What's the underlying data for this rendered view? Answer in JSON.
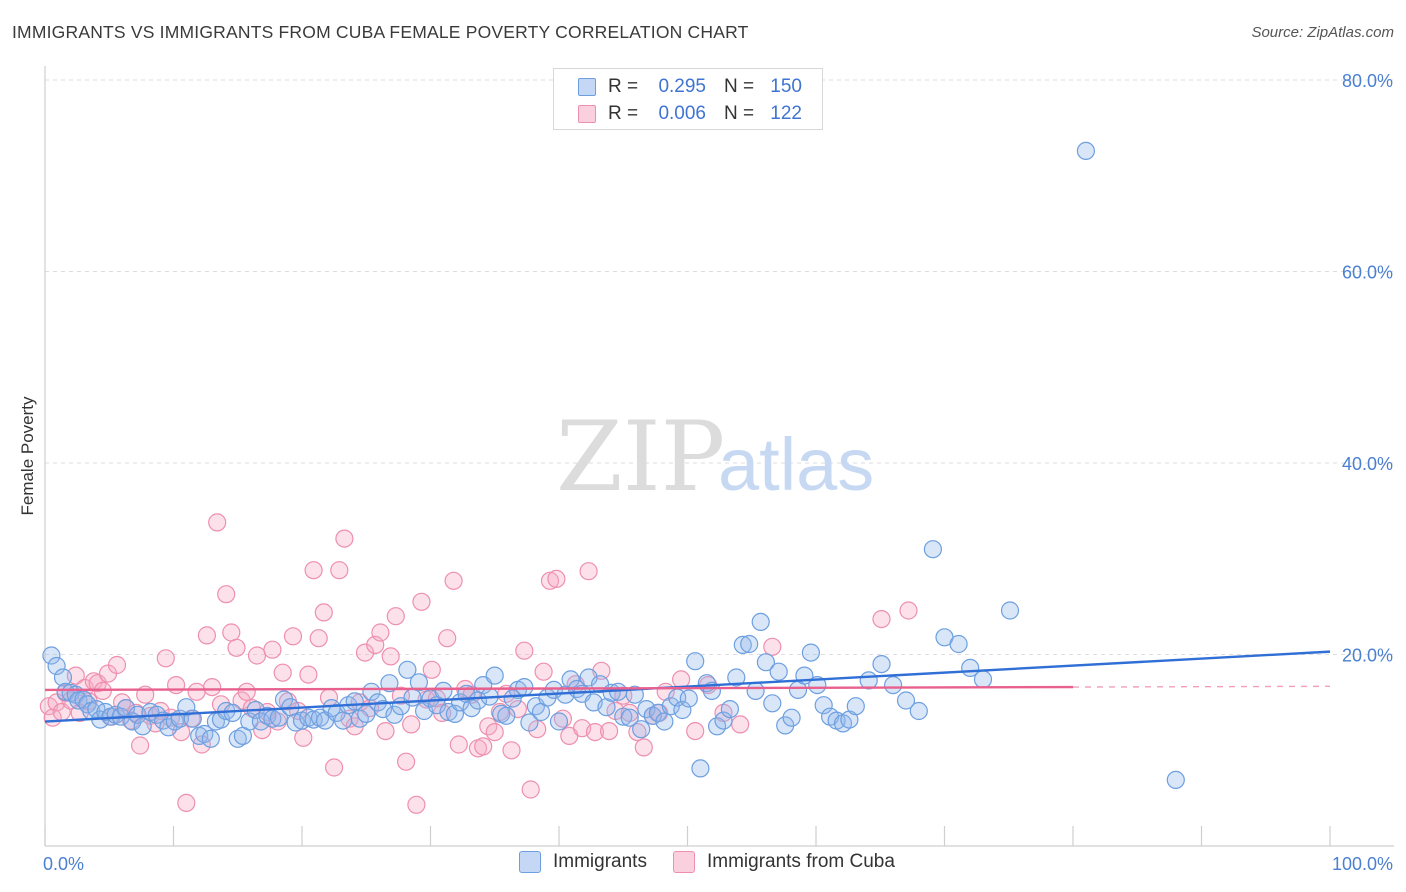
{
  "header": {
    "title": "IMMIGRANTS VS IMMIGRANTS FROM CUBA FEMALE POVERTY CORRELATION CHART",
    "source": "Source: ZipAtlas.com"
  },
  "watermark": {
    "zip": "ZIP",
    "atlas": "atlas"
  },
  "colors": {
    "blue": "#6d9fe0",
    "blue_fill": "rgba(147,184,236,0.35)",
    "blue_line": "#2f6fd6",
    "pink": "#ee8fae",
    "pink_fill": "rgba(245,170,195,0.35)",
    "pink_line": "#e8608e",
    "axis_text": "#4a7fd1",
    "grid": "#dddddd"
  },
  "legend": {
    "rows": [
      {
        "r_label": "R =",
        "r_value": "0.295",
        "n_label": "N =",
        "n_value": "150",
        "series": "blue"
      },
      {
        "r_label": "R =",
        "r_value": "0.006",
        "n_label": "N =",
        "n_value": "122",
        "series": "pink"
      }
    ]
  },
  "bottom_legend": {
    "items": [
      "Immigrants",
      "Immigrants from Cuba"
    ]
  },
  "chart_data": {
    "type": "scatter",
    "title": "IMMIGRANTS VS IMMIGRANTS FROM CUBA FEMALE POVERTY CORRELATION CHART",
    "xlabel": "",
    "ylabel": "Female Poverty",
    "xlim": [
      0,
      100
    ],
    "ylim": [
      0,
      80
    ],
    "x_tick_labels": [
      "0.0%",
      "100.0%"
    ],
    "y_ticks": [
      20,
      40,
      60,
      80
    ],
    "y_tick_labels": [
      "20.0%",
      "40.0%",
      "60.0%",
      "80.0%"
    ],
    "series": [
      {
        "name": "Immigrants",
        "color": "blue",
        "R": 0.295,
        "N": 150,
        "trend": {
          "x": [
            0,
            100
          ],
          "y": [
            13.0,
            20.3
          ],
          "x_end_dashed": 100
        },
        "points": [
          [
            0.5,
            19.9
          ],
          [
            0.9,
            18.8
          ],
          [
            1.4,
            17.6
          ],
          [
            1.6,
            16.1
          ],
          [
            2.0,
            16.0
          ],
          [
            2.4,
            15.8
          ],
          [
            2.6,
            15.2
          ],
          [
            3.0,
            15.3
          ],
          [
            3.3,
            14.8
          ],
          [
            3.6,
            14.1
          ],
          [
            4.0,
            14.3
          ],
          [
            4.3,
            13.2
          ],
          [
            4.7,
            14.0
          ],
          [
            5.1,
            13.5
          ],
          [
            5.5,
            13.7
          ],
          [
            5.9,
            13.5
          ],
          [
            6.3,
            14.4
          ],
          [
            6.8,
            13.0
          ],
          [
            7.2,
            13.7
          ],
          [
            7.6,
            12.5
          ],
          [
            8.2,
            14.0
          ],
          [
            8.7,
            13.7
          ],
          [
            9.2,
            13.1
          ],
          [
            9.6,
            12.4
          ],
          [
            10.1,
            13.0
          ],
          [
            10.5,
            13.3
          ],
          [
            11.0,
            14.5
          ],
          [
            11.5,
            13.3
          ],
          [
            12.0,
            11.5
          ],
          [
            12.4,
            11.7
          ],
          [
            12.9,
            11.2
          ],
          [
            13.3,
            13.0
          ],
          [
            13.7,
            13.2
          ],
          [
            14.1,
            14.1
          ],
          [
            14.6,
            13.9
          ],
          [
            15.0,
            11.2
          ],
          [
            15.4,
            11.5
          ],
          [
            15.9,
            13.0
          ],
          [
            16.4,
            14.2
          ],
          [
            16.8,
            13.0
          ],
          [
            17.3,
            13.6
          ],
          [
            17.7,
            13.3
          ],
          [
            18.2,
            13.4
          ],
          [
            18.6,
            15.3
          ],
          [
            19.1,
            14.5
          ],
          [
            19.5,
            12.9
          ],
          [
            20.0,
            13.1
          ],
          [
            20.5,
            13.4
          ],
          [
            20.9,
            13.2
          ],
          [
            21.4,
            13.4
          ],
          [
            21.8,
            13.1
          ],
          [
            22.3,
            14.4
          ],
          [
            22.7,
            13.9
          ],
          [
            23.2,
            13.1
          ],
          [
            23.6,
            14.7
          ],
          [
            24.1,
            15.1
          ],
          [
            24.5,
            13.3
          ],
          [
            25.0,
            13.8
          ],
          [
            25.4,
            16.1
          ],
          [
            25.9,
            15.0
          ],
          [
            26.3,
            14.3
          ],
          [
            26.8,
            17.0
          ],
          [
            27.2,
            13.7
          ],
          [
            27.7,
            14.6
          ],
          [
            28.2,
            18.4
          ],
          [
            28.6,
            15.5
          ],
          [
            29.1,
            17.1
          ],
          [
            29.5,
            14.1
          ],
          [
            30.0,
            15.4
          ],
          [
            30.5,
            14.7
          ],
          [
            31.0,
            16.2
          ],
          [
            31.4,
            14.0
          ],
          [
            31.9,
            13.8
          ],
          [
            32.3,
            15.0
          ],
          [
            32.8,
            15.9
          ],
          [
            33.2,
            14.4
          ],
          [
            33.7,
            15.2
          ],
          [
            34.1,
            16.8
          ],
          [
            34.6,
            15.6
          ],
          [
            35.0,
            17.8
          ],
          [
            35.5,
            13.8
          ],
          [
            35.9,
            13.6
          ],
          [
            36.4,
            15.4
          ],
          [
            36.8,
            16.3
          ],
          [
            37.3,
            16.6
          ],
          [
            37.7,
            12.9
          ],
          [
            38.2,
            14.6
          ],
          [
            38.6,
            14.0
          ],
          [
            39.1,
            15.5
          ],
          [
            39.6,
            16.3
          ],
          [
            40.0,
            13.0
          ],
          [
            40.5,
            15.8
          ],
          [
            40.9,
            17.4
          ],
          [
            41.4,
            16.4
          ],
          [
            41.8,
            15.9
          ],
          [
            42.3,
            17.6
          ],
          [
            42.7,
            15.0
          ],
          [
            43.2,
            16.9
          ],
          [
            43.7,
            14.5
          ],
          [
            44.1,
            16.0
          ],
          [
            44.6,
            16.1
          ],
          [
            45.0,
            13.5
          ],
          [
            45.5,
            13.4
          ],
          [
            45.9,
            15.8
          ],
          [
            46.4,
            12.2
          ],
          [
            46.8,
            14.3
          ],
          [
            47.3,
            13.6
          ],
          [
            47.7,
            13.9
          ],
          [
            48.2,
            13.0
          ],
          [
            48.7,
            14.6
          ],
          [
            49.2,
            15.5
          ],
          [
            49.6,
            14.2
          ],
          [
            50.1,
            15.4
          ],
          [
            50.6,
            19.3
          ],
          [
            51.0,
            8.1
          ],
          [
            51.5,
            17.0
          ],
          [
            51.9,
            16.2
          ],
          [
            52.3,
            12.5
          ],
          [
            52.8,
            13.1
          ],
          [
            53.3,
            14.3
          ],
          [
            53.8,
            17.6
          ],
          [
            54.3,
            21.0
          ],
          [
            54.8,
            21.1
          ],
          [
            55.3,
            16.2
          ],
          [
            55.7,
            23.4
          ],
          [
            56.1,
            19.2
          ],
          [
            56.6,
            14.9
          ],
          [
            57.1,
            18.2
          ],
          [
            57.6,
            12.6
          ],
          [
            58.1,
            13.4
          ],
          [
            58.6,
            16.3
          ],
          [
            59.1,
            17.8
          ],
          [
            59.6,
            20.2
          ],
          [
            60.1,
            16.8
          ],
          [
            60.6,
            14.7
          ],
          [
            61.1,
            13.5
          ],
          [
            61.6,
            13.1
          ],
          [
            62.1,
            12.8
          ],
          [
            62.6,
            13.2
          ],
          [
            63.1,
            14.6
          ],
          [
            64.1,
            17.3
          ],
          [
            65.1,
            19.0
          ],
          [
            66.0,
            16.8
          ],
          [
            67.0,
            15.2
          ],
          [
            68.0,
            14.1
          ],
          [
            69.1,
            31.0
          ],
          [
            70.0,
            21.8
          ],
          [
            71.1,
            21.1
          ],
          [
            72.0,
            18.6
          ],
          [
            73.0,
            17.4
          ],
          [
            75.1,
            24.6
          ],
          [
            81.0,
            72.6
          ],
          [
            88.0,
            6.9
          ]
        ]
      },
      {
        "name": "Immigrants from Cuba",
        "color": "pink",
        "R": 0.006,
        "N": 122,
        "trend": {
          "x": [
            0,
            80
          ],
          "y": [
            16.3,
            16.6
          ],
          "x_end_dashed": 100
        },
        "points": [
          [
            0.3,
            14.6
          ],
          [
            0.6,
            13.4
          ],
          [
            0.9,
            15.0
          ],
          [
            1.3,
            14.0
          ],
          [
            1.6,
            16.0
          ],
          [
            2.0,
            15.2
          ],
          [
            2.4,
            17.8
          ],
          [
            2.7,
            13.9
          ],
          [
            3.1,
            16.5
          ],
          [
            3.4,
            15.1
          ],
          [
            3.8,
            17.2
          ],
          [
            4.1,
            17.0
          ],
          [
            4.5,
            16.2
          ],
          [
            4.9,
            18.0
          ],
          [
            5.2,
            13.5
          ],
          [
            5.6,
            18.9
          ],
          [
            6.0,
            15.0
          ],
          [
            6.3,
            14.4
          ],
          [
            6.7,
            13.1
          ],
          [
            7.1,
            13.9
          ],
          [
            7.4,
            10.5
          ],
          [
            7.8,
            15.8
          ],
          [
            8.2,
            13.6
          ],
          [
            8.6,
            12.8
          ],
          [
            9.0,
            14.1
          ],
          [
            9.4,
            19.6
          ],
          [
            9.8,
            13.4
          ],
          [
            10.2,
            16.8
          ],
          [
            10.6,
            11.9
          ],
          [
            11.0,
            4.5
          ],
          [
            11.4,
            13.3
          ],
          [
            11.8,
            16.1
          ],
          [
            12.2,
            10.6
          ],
          [
            12.6,
            22.0
          ],
          [
            13.0,
            16.6
          ],
          [
            13.4,
            33.8
          ],
          [
            13.7,
            14.8
          ],
          [
            14.1,
            26.3
          ],
          [
            14.5,
            22.3
          ],
          [
            14.9,
            20.7
          ],
          [
            15.3,
            15.2
          ],
          [
            15.7,
            16.1
          ],
          [
            16.1,
            14.4
          ],
          [
            16.5,
            19.9
          ],
          [
            16.9,
            12.1
          ],
          [
            17.3,
            14.0
          ],
          [
            17.7,
            20.5
          ],
          [
            18.1,
            13.0
          ],
          [
            18.5,
            18.1
          ],
          [
            18.9,
            15.1
          ],
          [
            19.3,
            21.9
          ],
          [
            19.7,
            14.1
          ],
          [
            20.1,
            11.3
          ],
          [
            20.5,
            17.9
          ],
          [
            20.9,
            28.8
          ],
          [
            21.3,
            21.7
          ],
          [
            21.7,
            24.4
          ],
          [
            22.1,
            15.5
          ],
          [
            22.5,
            8.2
          ],
          [
            22.9,
            28.8
          ],
          [
            23.3,
            32.1
          ],
          [
            23.7,
            13.3
          ],
          [
            24.1,
            12.5
          ],
          [
            24.5,
            15.0
          ],
          [
            24.9,
            20.2
          ],
          [
            25.3,
            14.4
          ],
          [
            25.7,
            21.0
          ],
          [
            26.1,
            22.3
          ],
          [
            26.5,
            12.0
          ],
          [
            26.9,
            19.8
          ],
          [
            27.3,
            24.0
          ],
          [
            27.7,
            15.7
          ],
          [
            28.1,
            8.8
          ],
          [
            28.5,
            12.7
          ],
          [
            28.9,
            4.3
          ],
          [
            29.3,
            25.5
          ],
          [
            29.7,
            15.3
          ],
          [
            30.1,
            18.4
          ],
          [
            30.5,
            15.4
          ],
          [
            30.9,
            13.9
          ],
          [
            31.3,
            21.7
          ],
          [
            31.8,
            27.7
          ],
          [
            32.2,
            10.6
          ],
          [
            32.7,
            16.4
          ],
          [
            33.2,
            15.8
          ],
          [
            33.7,
            10.2
          ],
          [
            34.1,
            10.4
          ],
          [
            34.5,
            12.5
          ],
          [
            35.0,
            11.9
          ],
          [
            35.4,
            14.0
          ],
          [
            35.9,
            15.9
          ],
          [
            36.3,
            10.0
          ],
          [
            36.8,
            14.3
          ],
          [
            37.3,
            20.4
          ],
          [
            37.8,
            5.9
          ],
          [
            38.3,
            12.2
          ],
          [
            38.8,
            18.2
          ],
          [
            39.3,
            27.7
          ],
          [
            39.8,
            27.9
          ],
          [
            40.3,
            13.3
          ],
          [
            40.8,
            11.5
          ],
          [
            41.3,
            16.9
          ],
          [
            41.8,
            12.3
          ],
          [
            42.3,
            28.7
          ],
          [
            42.8,
            11.9
          ],
          [
            43.3,
            18.3
          ],
          [
            43.9,
            12.0
          ],
          [
            44.4,
            14.1
          ],
          [
            45.0,
            15.7
          ],
          [
            45.5,
            13.9
          ],
          [
            46.1,
            11.9
          ],
          [
            46.6,
            10.3
          ],
          [
            47.3,
            13.6
          ],
          [
            47.8,
            13.9
          ],
          [
            48.3,
            16.1
          ],
          [
            49.5,
            17.4
          ],
          [
            50.6,
            12.0
          ],
          [
            51.6,
            16.8
          ],
          [
            52.8,
            13.9
          ],
          [
            54.1,
            12.7
          ],
          [
            56.6,
            20.8
          ],
          [
            65.1,
            23.7
          ],
          [
            67.2,
            24.6
          ]
        ]
      }
    ]
  }
}
